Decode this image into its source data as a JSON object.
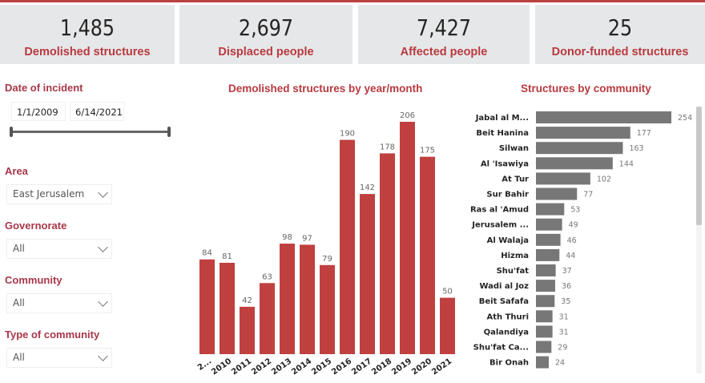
{
  "kpis": [
    {
      "value": "1,485",
      "label": "Demolished structures"
    },
    {
      "value": "2,697",
      "label": "Displaced people"
    },
    {
      "value": "7,427",
      "label": "Affected people"
    },
    {
      "value": "25",
      "label": "Donor-funded structures"
    }
  ],
  "filters": {
    "date": {
      "label": "Date of incident",
      "start": "1/1/2009",
      "end": "6/14/2021"
    },
    "area": {
      "label": "Area",
      "value": "East Jerusalem"
    },
    "governorate": {
      "label": "Governorate",
      "value": "All"
    },
    "community": {
      "label": "Community",
      "value": "All"
    },
    "type": {
      "label": "Type of community",
      "value": "All"
    }
  },
  "colors": {
    "accent": "#b83a3f",
    "bar_red": "#c0403f",
    "bar_gray": "#777777"
  },
  "chart_data": [
    {
      "type": "bar",
      "title": "Demolished structures by year/month",
      "categories": [
        "2...",
        "2010",
        "2011",
        "2012",
        "2013",
        "2014",
        "2015",
        "2016",
        "2017",
        "2018",
        "2019",
        "2020",
        "2021"
      ],
      "values": [
        84,
        81,
        42,
        63,
        98,
        97,
        79,
        190,
        142,
        178,
        206,
        175,
        50
      ]
    },
    {
      "type": "bar",
      "orientation": "horizontal",
      "title": "Structures by community",
      "categories": [
        "Jabal al M...",
        "Beit Hanina",
        "Silwan",
        "Al 'Isawiya",
        "At Tur",
        "Sur Bahir",
        "Ras al 'Amud",
        "Jerusalem ...",
        "Al Walaja",
        "Hizma",
        "Shu'fat",
        "Wadi al Joz",
        "Beit Safafa",
        "Ath Thuri",
        "Qalandiya",
        "Shu'fat Ca...",
        "Bir Onah"
      ],
      "values": [
        254,
        177,
        163,
        144,
        102,
        77,
        53,
        49,
        46,
        44,
        37,
        36,
        35,
        31,
        31,
        29,
        24
      ]
    }
  ]
}
